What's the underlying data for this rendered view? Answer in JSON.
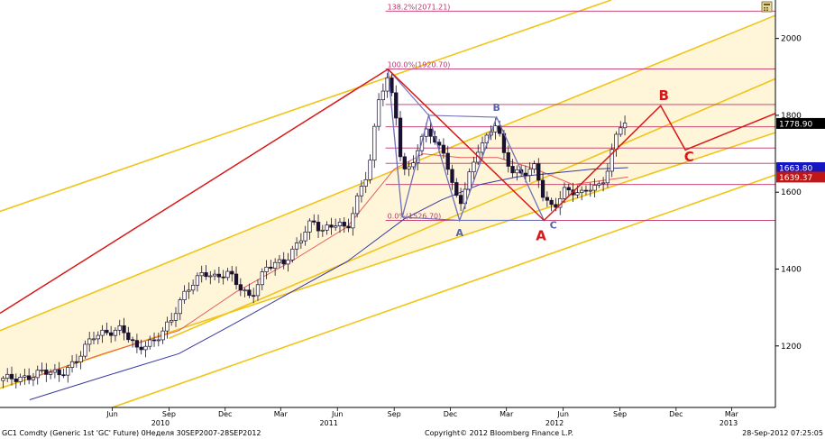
{
  "chart_data": {
    "type": "candlestick",
    "title": "",
    "xlabel": "",
    "ylabel": "",
    "ylim": [
      1040,
      2100
    ],
    "y_ticks": [
      1200,
      1400,
      1600,
      1800,
      2000
    ],
    "x_range": [
      "2009-12-15",
      "2013-05-25"
    ],
    "x_month_ticks": [
      {
        "label": "Jun",
        "date": "2010-06-15"
      },
      {
        "label": "Sep",
        "date": "2010-09-15"
      },
      {
        "label": "Dec",
        "date": "2010-12-15"
      },
      {
        "label": "Mar",
        "date": "2011-03-15"
      },
      {
        "label": "Jun",
        "date": "2011-06-15"
      },
      {
        "label": "Sep",
        "date": "2011-09-15"
      },
      {
        "label": "Dec",
        "date": "2011-12-15"
      },
      {
        "label": "Mar",
        "date": "2012-03-15"
      },
      {
        "label": "Jun",
        "date": "2012-06-15"
      },
      {
        "label": "Sep",
        "date": "2012-09-15"
      },
      {
        "label": "Dec",
        "date": "2012-12-15"
      },
      {
        "label": "Mar",
        "date": "2013-03-15"
      }
    ],
    "x_year_ticks": [
      {
        "label": "2010",
        "date": "2010-09-01"
      },
      {
        "label": "2011",
        "date": "2011-06-01"
      },
      {
        "label": "2012",
        "date": "2012-06-01"
      },
      {
        "label": "2013",
        "date": "2013-03-10"
      }
    ],
    "close_path": [
      [
        "2009-12-20",
        1110
      ],
      [
        "2010-01-20",
        1120
      ],
      [
        "2010-02-20",
        1130
      ],
      [
        "2010-03-20",
        1125
      ],
      [
        "2010-04-20",
        1170
      ],
      [
        "2010-05-15",
        1220
      ],
      [
        "2010-06-10",
        1240
      ],
      [
        "2010-06-30",
        1250
      ],
      [
        "2010-07-25",
        1185
      ],
      [
        "2010-08-20",
        1215
      ],
      [
        "2010-09-20",
        1270
      ],
      [
        "2010-10-15",
        1345
      ],
      [
        "2010-11-10",
        1400
      ],
      [
        "2010-11-30",
        1375
      ],
      [
        "2010-12-20",
        1385
      ],
      [
        "2011-01-25",
        1330
      ],
      [
        "2011-02-20",
        1400
      ],
      [
        "2011-03-20",
        1420
      ],
      [
        "2011-04-20",
        1490
      ],
      [
        "2011-05-05",
        1520
      ],
      [
        "2011-05-20",
        1495
      ],
      [
        "2011-06-15",
        1530
      ],
      [
        "2011-06-30",
        1500
      ],
      [
        "2011-07-20",
        1590
      ],
      [
        "2011-08-05",
        1660
      ],
      [
        "2011-08-22",
        1860
      ],
      [
        "2011-09-05",
        1900
      ],
      [
        "2011-09-20",
        1780
      ],
      [
        "2011-09-28",
        1640
      ],
      [
        "2011-10-10",
        1660
      ],
      [
        "2011-10-25",
        1720
      ],
      [
        "2011-11-08",
        1780
      ],
      [
        "2011-11-22",
        1720
      ],
      [
        "2011-12-05",
        1700
      ],
      [
        "2011-12-20",
        1600
      ],
      [
        "2011-12-30",
        1570
      ],
      [
        "2012-01-15",
        1650
      ],
      [
        "2012-01-30",
        1720
      ],
      [
        "2012-02-10",
        1730
      ],
      [
        "2012-02-28",
        1780
      ],
      [
        "2012-03-10",
        1700
      ],
      [
        "2012-03-25",
        1660
      ],
      [
        "2012-04-10",
        1650
      ],
      [
        "2012-04-30",
        1660
      ],
      [
        "2012-05-15",
        1580
      ],
      [
        "2012-05-30",
        1560
      ],
      [
        "2012-06-15",
        1610
      ],
      [
        "2012-06-30",
        1600
      ],
      [
        "2012-07-15",
        1590
      ],
      [
        "2012-07-31",
        1615
      ],
      [
        "2012-08-15",
        1620
      ],
      [
        "2012-08-25",
        1660
      ],
      [
        "2012-09-07",
        1735
      ],
      [
        "2012-09-14",
        1770
      ],
      [
        "2012-09-21",
        1775
      ],
      [
        "2012-09-28",
        1778.9
      ]
    ],
    "moving_averages": [
      {
        "color": "#e85a5a",
        "points": [
          [
            "2010-02-01",
            1115
          ],
          [
            "2010-06-01",
            1180
          ],
          [
            "2010-10-01",
            1240
          ],
          [
            "2011-01-01",
            1340
          ],
          [
            "2011-04-01",
            1420
          ],
          [
            "2011-07-01",
            1510
          ],
          [
            "2011-09-15",
            1660
          ],
          [
            "2011-11-01",
            1700
          ],
          [
            "2012-01-01",
            1690
          ],
          [
            "2012-03-01",
            1690
          ],
          [
            "2012-05-01",
            1660
          ],
          [
            "2012-07-01",
            1620
          ],
          [
            "2012-09-28",
            1639.37
          ]
        ]
      },
      {
        "color": "#3a3aa0",
        "points": [
          [
            "2010-02-01",
            1060
          ],
          [
            "2010-06-01",
            1120
          ],
          [
            "2010-10-01",
            1180
          ],
          [
            "2011-01-01",
            1260
          ],
          [
            "2011-04-01",
            1340
          ],
          [
            "2011-07-01",
            1420
          ],
          [
            "2011-10-01",
            1530
          ],
          [
            "2011-12-01",
            1580
          ],
          [
            "2012-02-01",
            1620
          ],
          [
            "2012-04-01",
            1640
          ],
          [
            "2012-06-01",
            1650
          ],
          [
            "2012-08-01",
            1660
          ],
          [
            "2012-09-28",
            1663.8
          ]
        ]
      }
    ],
    "channel": {
      "color": "#f0c419",
      "fill": "rgba(255,230,150,0.35)",
      "lines": [
        {
          "kind": "outer-upper",
          "points": [
            [
              "2009-12-15",
              1550
            ],
            [
              "2012-09-01",
              2100
            ]
          ]
        },
        {
          "kind": "upper",
          "points": [
            [
              "2009-12-15",
              1240
            ],
            [
              "2013-05-25",
              2060
            ]
          ]
        },
        {
          "kind": "mid",
          "points": [
            [
              "2010-09-15",
              1220
            ],
            [
              "2013-05-25",
              1895
            ]
          ]
        },
        {
          "kind": "lower",
          "points": [
            [
              "2009-12-15",
              1090
            ],
            [
              "2013-05-25",
              1755
            ]
          ]
        },
        {
          "kind": "outer-lower",
          "points": [
            [
              "2010-06-15",
              1040
            ],
            [
              "2013-05-25",
              1645
            ]
          ]
        }
      ]
    },
    "fibonacci": {
      "color": "#c0306a",
      "x_start": "2011-09-01",
      "x_end": "2013-05-25",
      "levels": [
        {
          "price": 2071.21,
          "label": "138.2%(2071.21)",
          "show_label": true
        },
        {
          "price": 1920.7,
          "label": "100.0%(1920.70)",
          "show_label": true
        },
        {
          "price": 1828,
          "label": "",
          "show_label": false
        },
        {
          "price": 1770,
          "label": "",
          "show_label": false
        },
        {
          "price": 1715,
          "label": "",
          "show_label": false
        },
        {
          "price": 1675,
          "label": "",
          "show_label": false
        },
        {
          "price": 1620,
          "label": "",
          "show_label": false
        },
        {
          "price": 1526.7,
          "label": "0.0%(1526.70)",
          "show_label": true
        }
      ]
    },
    "wave_red": {
      "color": "#d81818",
      "points": [
        [
          "2009-12-15",
          1285
        ],
        [
          "2011-09-05",
          1920
        ],
        [
          "2012-05-15",
          1526.7
        ],
        [
          "2012-11-20",
          1825
        ],
        [
          "2012-12-30",
          1710
        ],
        [
          "2013-05-25",
          1805
        ]
      ],
      "labels": [
        {
          "text": "A",
          "date": "2012-05-10",
          "price": 1475
        },
        {
          "text": "B",
          "date": "2012-11-25",
          "price": 1840
        },
        {
          "text": "C",
          "date": "2013-01-05",
          "price": 1680
        }
      ]
    },
    "wave_blue": {
      "color": "#6e70b6",
      "points": [
        [
          "2011-09-05",
          1920
        ],
        [
          "2011-09-28",
          1535
        ],
        [
          "2011-11-10",
          1800
        ],
        [
          "2011-12-30",
          1526.7
        ],
        [
          "2012-02-28",
          1795
        ],
        [
          "2012-05-15",
          1526.7
        ]
      ],
      "extra_segments": [
        [
          [
            "2011-09-05",
            1920
          ],
          [
            "2011-11-10",
            1800
          ]
        ],
        [
          [
            "2011-09-28",
            1535
          ],
          [
            "2011-12-30",
            1526.7
          ]
        ],
        [
          [
            "2011-11-10",
            1800
          ],
          [
            "2012-02-28",
            1795
          ]
        ],
        [
          [
            "2011-12-30",
            1526.7
          ],
          [
            "2012-05-15",
            1526.7
          ]
        ]
      ],
      "labels": [
        {
          "text": "B",
          "date": "2012-02-28",
          "price": 1812
        },
        {
          "text": "A",
          "date": "2011-12-30",
          "price": 1485
        },
        {
          "text": "C",
          "date": "2012-05-30",
          "price": 1505
        }
      ]
    },
    "price_tags": [
      {
        "label": "1778.90",
        "price": 1778.9,
        "bg": "#000000",
        "fg": "#ffffff"
      },
      {
        "label": "1663.80",
        "price": 1663.8,
        "bg": "#1616c0",
        "fg": "#ffffff"
      },
      {
        "label": "1639.37",
        "price": 1639.37,
        "bg": "#c01616",
        "fg": "#ffffff"
      }
    ]
  },
  "footer": {
    "left": "GC1 Comdty (Generic 1st 'GC' Future) 0Неделя 30SEP2007-28SEP2012",
    "center": "Copyright© 2012 Bloomberg Finance L.P.",
    "right": "28-Sep-2012 07:25:05"
  },
  "colors": {
    "axis": "#000000",
    "tick_grid": "#b8b8b8",
    "bull_candle": "#ffffff",
    "bear_candle": "#1a1030"
  },
  "icons": {
    "corner": "calculator-icon"
  }
}
